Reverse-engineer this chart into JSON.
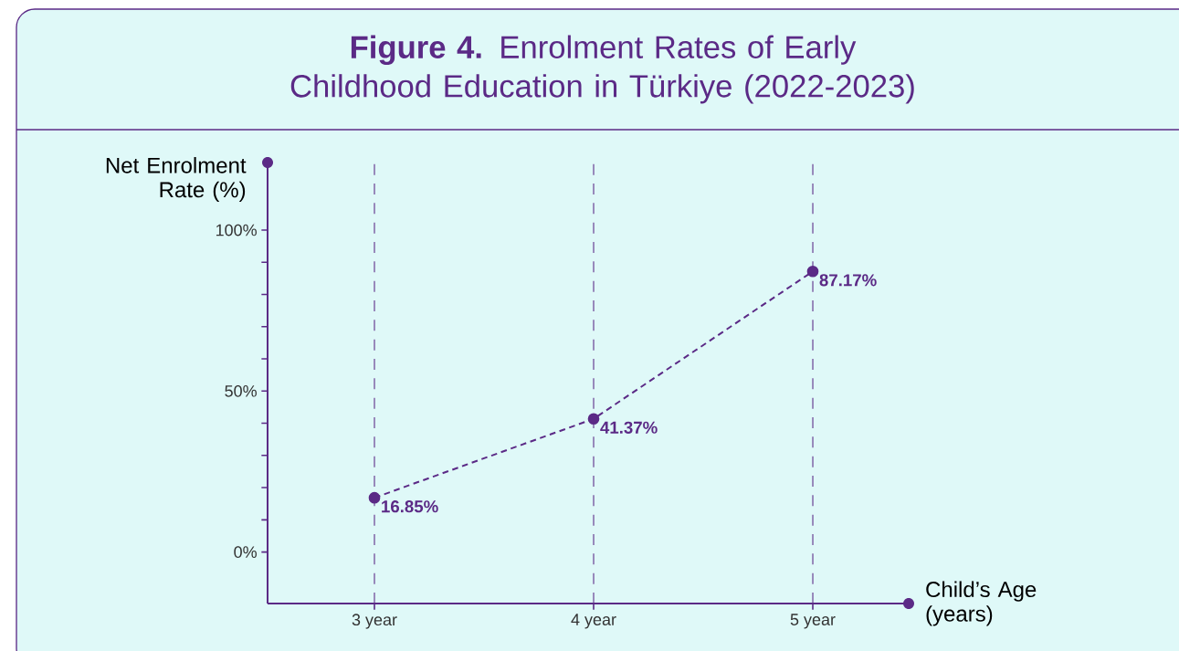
{
  "chart_data": {
    "type": "line",
    "title": "**Figure 4.** Enrolment Rates of Early Childhood Education in Türkiye (2022-2023)",
    "xlabel": "Child’s Age (years)",
    "ylabel": "Net Enrolment Rate (%)",
    "categories": [
      "3 year",
      "4 year",
      "5 year"
    ],
    "values": [
      16.85,
      41.37,
      87.17
    ],
    "value_labels": [
      "16.85%",
      "41.37%",
      "87.17%"
    ],
    "color": "#5b2a86",
    "ylim": [
      -16,
      121
    ],
    "yticks": [
      {
        "value": 0,
        "label": "0%"
      },
      {
        "value": 10,
        "label": null
      },
      {
        "value": 20,
        "label": null
      },
      {
        "value": 30,
        "label": null
      },
      {
        "value": 40,
        "label": null
      },
      {
        "value": 50,
        "label": "50%"
      },
      {
        "value": 60,
        "label": null
      },
      {
        "value": 70,
        "label": null
      },
      {
        "value": 80,
        "label": null
      },
      {
        "value": 90,
        "label": null
      },
      {
        "value": 100,
        "label": "100%"
      }
    ],
    "grid": "x",
    "marker": "circle",
    "line_style": "dashed"
  }
}
